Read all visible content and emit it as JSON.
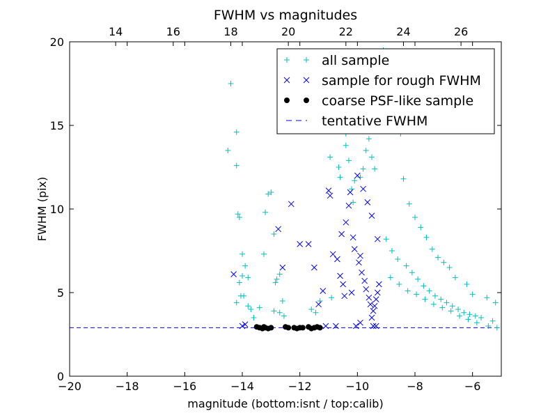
{
  "chart_data": {
    "type": "scatter",
    "title": "FWHM vs magnitudes",
    "xlabel": "magnitude (bottom:isnt / top:calib)",
    "ylabel": "FWHM (pix)",
    "xlim": [
      -20,
      -5
    ],
    "ylim": [
      0,
      20
    ],
    "xticks": [
      -20,
      -18,
      -16,
      -14,
      -12,
      -10,
      -8,
      -6
    ],
    "xtick_labels": [
      "−20",
      "−18",
      "−16",
      "−14",
      "−12",
      "−10",
      "−8",
      "−6"
    ],
    "yticks": [
      0,
      5,
      10,
      15,
      20
    ],
    "ytick_labels": [
      "0",
      "5",
      "10",
      "15",
      "20"
    ],
    "top_axis": {
      "ticks_bottom_equiv": [
        -18.4,
        -16.4,
        -14.4,
        -12.4,
        -10.4,
        -8.4,
        -6.4
      ],
      "labels": [
        "14",
        "16",
        "18",
        "20",
        "22",
        "24",
        "26"
      ]
    },
    "grid": false,
    "legend": {
      "placement": "top-right",
      "entries": [
        {
          "label": "all sample",
          "marker": "plus",
          "color": "#00BFBF"
        },
        {
          "label": "sample for rough FWHM",
          "marker": "x",
          "color": "#0000FF"
        },
        {
          "label": "coarse PSF-like sample",
          "marker": "dot",
          "color": "#000000"
        },
        {
          "label": "tentative FWHM",
          "marker": "dash",
          "color": "#0000FF"
        }
      ]
    },
    "tentative_fwhm": 2.9,
    "series": [
      {
        "name": "all sample",
        "marker": "plus",
        "color": "#00BFBF",
        "x": [
          -14.4,
          -14.2,
          -14.2,
          -14.15,
          -14.1,
          -14.5,
          -14.0,
          -13.9,
          -14.0,
          -14.1,
          -13.8,
          -14.05,
          -14.2,
          -13.6,
          -13.7,
          -13.8,
          -13.95,
          -13.2,
          -13.1,
          -13.0,
          -12.9,
          -13.25,
          -12.8,
          -12.7,
          -12.6,
          -12.9,
          -13.4,
          -12.85,
          -12.55,
          -12.7,
          -11.6,
          -11.45,
          -11.3,
          -10.9,
          -10.95,
          -10.6,
          -10.65,
          -10.4,
          -10.4,
          -10.3,
          -10.2,
          -10.15,
          -10.1,
          -9.9,
          -9.8,
          -9.7,
          -9.6,
          -9.5,
          -9.4,
          -10.0,
          -9.85,
          -9.65,
          -9.45,
          -9.25,
          -9.1,
          -8.9,
          -8.7,
          -8.5,
          -8.4,
          -8.2,
          -8.0,
          -7.8,
          -7.6,
          -7.4,
          -7.2,
          -7.0,
          -6.8,
          -6.6,
          -6.2,
          -6.0,
          -5.5,
          -5.2,
          -9.0,
          -8.8,
          -8.6,
          -8.3,
          -8.1,
          -7.9,
          -7.7,
          -7.5,
          -7.3,
          -7.1,
          -6.9,
          -6.7,
          -6.5,
          -6.3,
          -6.1,
          -5.9,
          -5.7,
          -5.3,
          -8.85,
          -8.55,
          -8.25,
          -7.95,
          -7.65,
          -7.35,
          -7.05,
          -6.75,
          -6.45,
          -6.15,
          -5.85,
          -5.45,
          -5.15
        ],
        "y": [
          17.5,
          14.6,
          12.6,
          9.7,
          9.5,
          13.5,
          7.3,
          6.6,
          6.0,
          5.6,
          5.9,
          4.8,
          4.4,
          3.5,
          4.0,
          4.2,
          4.8,
          9.8,
          10.9,
          11.0,
          8.5,
          7.3,
          5.8,
          6.1,
          4.5,
          3.9,
          4.1,
          5.6,
          3.6,
          3.8,
          4.0,
          3.8,
          4.5,
          4.7,
          13.1,
          11.9,
          12.5,
          13.8,
          14.5,
          12.9,
          11.2,
          10.4,
          11.7,
          11.9,
          12.4,
          13.5,
          14.2,
          13.1,
          12.4,
          15.6,
          16.4,
          17.2,
          17.8,
          18.5,
          19.5,
          17.6,
          16.2,
          14.5,
          11.8,
          10.3,
          9.5,
          8.9,
          8.3,
          7.6,
          7.1,
          6.8,
          6.5,
          5.9,
          5.5,
          4.9,
          4.7,
          4.4,
          8.2,
          7.5,
          7.0,
          6.6,
          6.2,
          5.8,
          5.4,
          5.1,
          4.8,
          4.6,
          4.4,
          4.2,
          4.0,
          3.8,
          3.7,
          3.6,
          3.5,
          3.3,
          5.9,
          5.5,
          5.1,
          4.9,
          4.6,
          4.3,
          4.1,
          3.9,
          3.6,
          3.4,
          3.2,
          3.0,
          2.9
        ]
      },
      {
        "name": "sample for rough FWHM",
        "marker": "x",
        "color": "#0000FF",
        "x": [
          -14.3,
          -14.0,
          -13.9,
          -12.75,
          -12.6,
          -12.3,
          -12.0,
          -11.7,
          -11.5,
          -11.35,
          -11.2,
          -11.0,
          -10.95,
          -10.85,
          -10.7,
          -10.6,
          -10.5,
          -10.55,
          -10.4,
          -10.3,
          -10.25,
          -10.15,
          -10.1,
          -9.95,
          -9.9,
          -9.85,
          -9.75,
          -9.7,
          -9.6,
          -9.55,
          -9.45,
          -9.4,
          -9.35,
          -9.3,
          -9.25,
          -10.0,
          -9.8,
          -9.65,
          -9.5,
          -9.3,
          -10.2,
          -10.45,
          -9.9,
          -9.5,
          -11.1,
          -10.75,
          -9.45,
          -9.35,
          -10.05
        ],
        "y": [
          6.1,
          3.0,
          3.1,
          8.8,
          6.5,
          10.3,
          7.9,
          7.9,
          6.5,
          4.3,
          5.1,
          11.1,
          10.8,
          7.3,
          7.0,
          6.0,
          5.5,
          8.5,
          9.2,
          10.2,
          11.0,
          8.3,
          7.6,
          6.8,
          7.2,
          6.2,
          5.7,
          5.2,
          4.7,
          4.3,
          3.9,
          4.2,
          4.6,
          5.0,
          5.5,
          12.0,
          11.2,
          10.4,
          9.6,
          8.2,
          5.0,
          4.8,
          3.2,
          3.5,
          3.0,
          3.0,
          3.0,
          3.0,
          3.0
        ]
      },
      {
        "name": "coarse PSF-like sample",
        "marker": "dot",
        "color": "#000000",
        "x": [
          -13.5,
          -13.4,
          -13.3,
          -13.25,
          -13.2,
          -13.1,
          -13.0,
          -12.5,
          -12.4,
          -12.2,
          -12.1,
          -12.0,
          -11.9,
          -11.7,
          -11.6,
          -11.5,
          -11.4,
          -11.3
        ],
        "y": [
          2.95,
          2.9,
          2.85,
          2.95,
          2.9,
          2.85,
          2.9,
          2.95,
          2.9,
          2.9,
          2.85,
          2.9,
          2.9,
          2.95,
          2.85,
          2.9,
          2.95,
          2.9
        ]
      }
    ]
  }
}
